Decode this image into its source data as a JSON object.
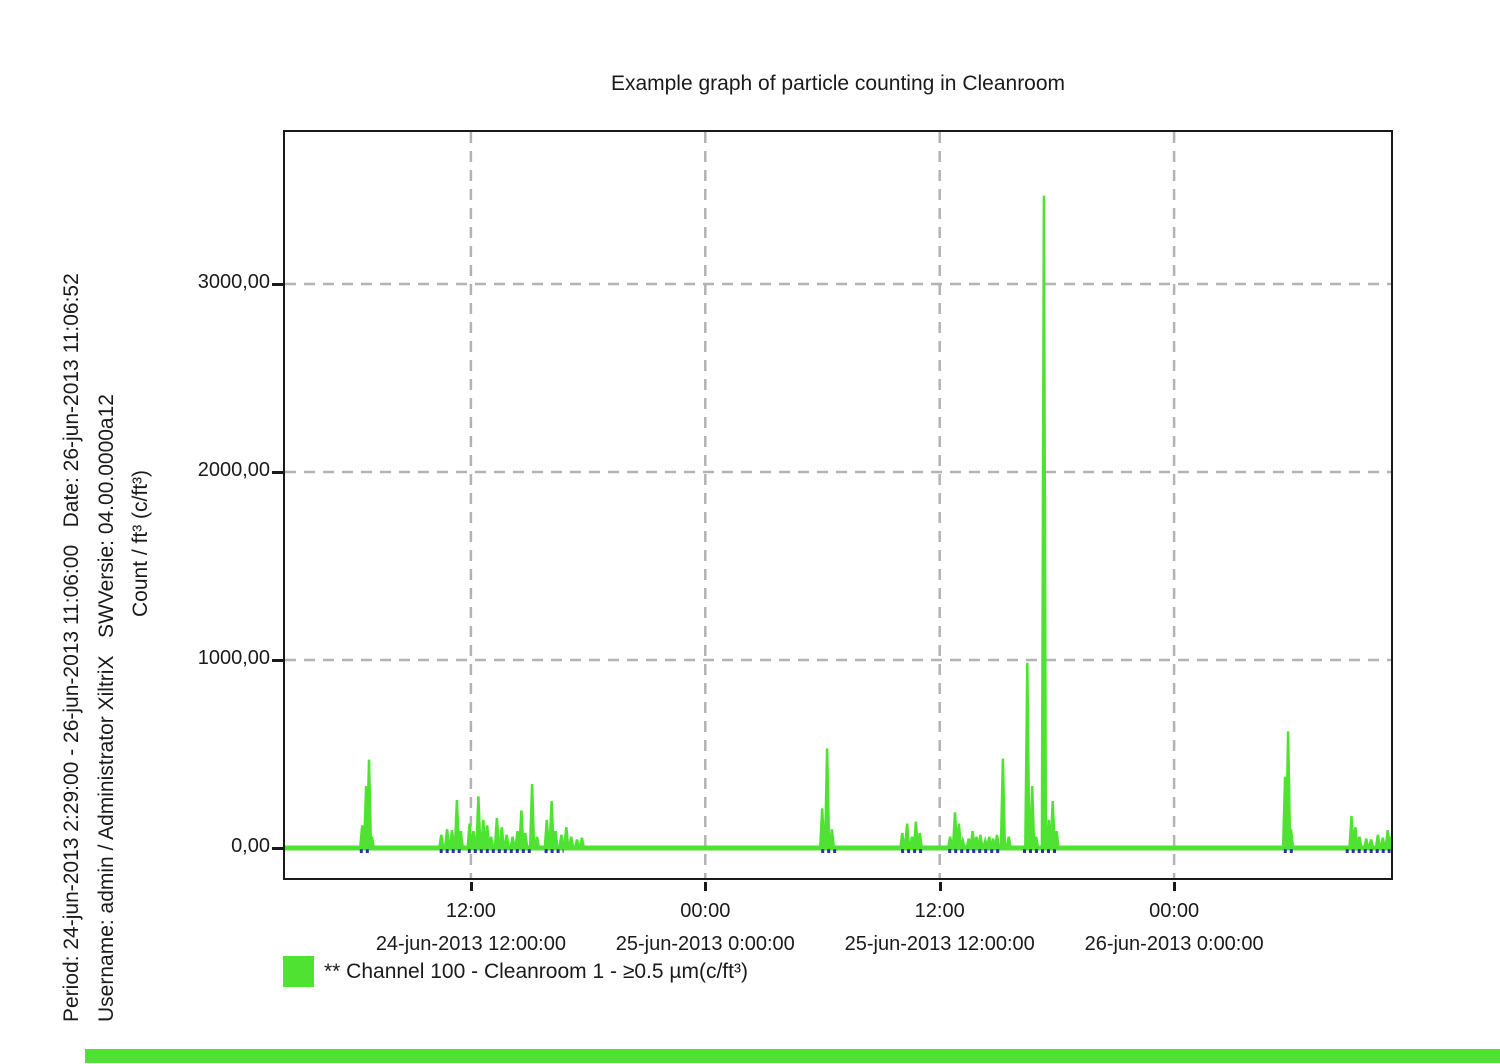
{
  "header": {
    "title": "Example graph of particle counting in Cleanroom"
  },
  "meta": {
    "period_date_line": "Period: 24-jun-2013 2:29:00 - 26-jun-2013 11:06:00   Date: 26-jun-2013 11:06:52",
    "username_swversion_line": "Username: admin / Administrator XiltriX   SWVersie: 04.00.0000a12"
  },
  "legend": {
    "label": "** Channel 100 - Cleanroom 1 - ≥0.5 µm(c/ft³)",
    "swatch_color": "#50e232"
  },
  "status_bar": {
    "color": "#50e232"
  },
  "chart_data": {
    "type": "line",
    "title": "Example graph of particle counting in Cleanroom",
    "xlabel": "",
    "ylabel": "Count / ft³ (c/ft³)",
    "grid": true,
    "legend_position": "bottom-left",
    "t_unit": "hours since 24-jun-2013 02:29:00",
    "t_range": [
      0,
      56.62
    ],
    "y_range": [
      0,
      3818
    ],
    "y_ticks": [
      {
        "value": 0,
        "label": "0,00"
      },
      {
        "value": 1000,
        "label": "1000,00"
      },
      {
        "value": 2000,
        "label": "2000,00"
      },
      {
        "value": 3000,
        "label": "3000,00"
      }
    ],
    "x_ticks": [
      {
        "t": 9.517,
        "time": "12:00",
        "date": "24-jun-2013 12:00:00"
      },
      {
        "t": 21.517,
        "time": "00:00",
        "date": "25-jun-2013 0:00:00"
      },
      {
        "t": 33.517,
        "time": "12:00",
        "date": "25-jun-2013 12:00:00"
      },
      {
        "t": 45.517,
        "time": "00:00",
        "date": "26-jun-2013 0:00:00"
      }
    ],
    "series": [
      {
        "name": "** Channel 100 - Cleanroom 1 - ≥0.5 µm(c/ft³)",
        "color": "#50e232",
        "baseline_value": 2,
        "spikes": [
          [
            3.95,
            120
          ],
          [
            4.15,
            330
          ],
          [
            4.3,
            470
          ],
          [
            4.45,
            60
          ],
          [
            8.0,
            70
          ],
          [
            8.3,
            100
          ],
          [
            8.55,
            95
          ],
          [
            8.8,
            255
          ],
          [
            9.0,
            90
          ],
          [
            9.45,
            130
          ],
          [
            9.65,
            90
          ],
          [
            9.9,
            275
          ],
          [
            10.15,
            150
          ],
          [
            10.35,
            120
          ],
          [
            10.55,
            60
          ],
          [
            10.85,
            160
          ],
          [
            11.1,
            110
          ],
          [
            11.35,
            70
          ],
          [
            11.65,
            60
          ],
          [
            11.9,
            90
          ],
          [
            12.1,
            200
          ],
          [
            12.3,
            80
          ],
          [
            12.65,
            340
          ],
          [
            12.9,
            60
          ],
          [
            13.4,
            150
          ],
          [
            13.65,
            250
          ],
          [
            13.85,
            90
          ],
          [
            14.15,
            70
          ],
          [
            14.4,
            110
          ],
          [
            14.65,
            60
          ],
          [
            14.95,
            45
          ],
          [
            15.2,
            55
          ],
          [
            27.5,
            210
          ],
          [
            27.75,
            530
          ],
          [
            28.0,
            100
          ],
          [
            31.6,
            80
          ],
          [
            31.85,
            130
          ],
          [
            32.1,
            60
          ],
          [
            32.3,
            140
          ],
          [
            32.5,
            80
          ],
          [
            34.05,
            60
          ],
          [
            34.3,
            190
          ],
          [
            34.5,
            130
          ],
          [
            34.7,
            40
          ],
          [
            35.0,
            50
          ],
          [
            35.2,
            90
          ],
          [
            35.4,
            60
          ],
          [
            35.6,
            70
          ],
          [
            35.85,
            40
          ],
          [
            36.05,
            60
          ],
          [
            36.25,
            50
          ],
          [
            36.45,
            70
          ],
          [
            36.75,
            475
          ],
          [
            37.05,
            60
          ],
          [
            38.0,
            985
          ],
          [
            38.25,
            330
          ],
          [
            38.45,
            60
          ],
          [
            38.85,
            3470
          ],
          [
            39.1,
            150
          ],
          [
            39.3,
            250
          ],
          [
            39.5,
            90
          ],
          [
            51.2,
            380
          ],
          [
            51.35,
            620
          ],
          [
            51.5,
            100
          ],
          [
            54.6,
            170
          ],
          [
            54.8,
            110
          ],
          [
            55.0,
            60
          ],
          [
            55.35,
            50
          ],
          [
            55.6,
            45
          ],
          [
            55.95,
            70
          ],
          [
            56.2,
            55
          ],
          [
            56.45,
            95
          ],
          [
            56.6,
            60
          ]
        ]
      }
    ],
    "marker_color": "#2734ad",
    "marker_ranges": [
      [
        3.83,
        4.35
      ],
      [
        7.92,
        9.05
      ],
      [
        9.36,
        12.73
      ],
      [
        13.29,
        14.26
      ],
      [
        27.45,
        28.27
      ],
      [
        31.54,
        32.67
      ],
      [
        33.95,
        36.66
      ],
      [
        37.78,
        39.52
      ],
      [
        51.13,
        51.69
      ],
      [
        54.3,
        56.6
      ]
    ]
  }
}
